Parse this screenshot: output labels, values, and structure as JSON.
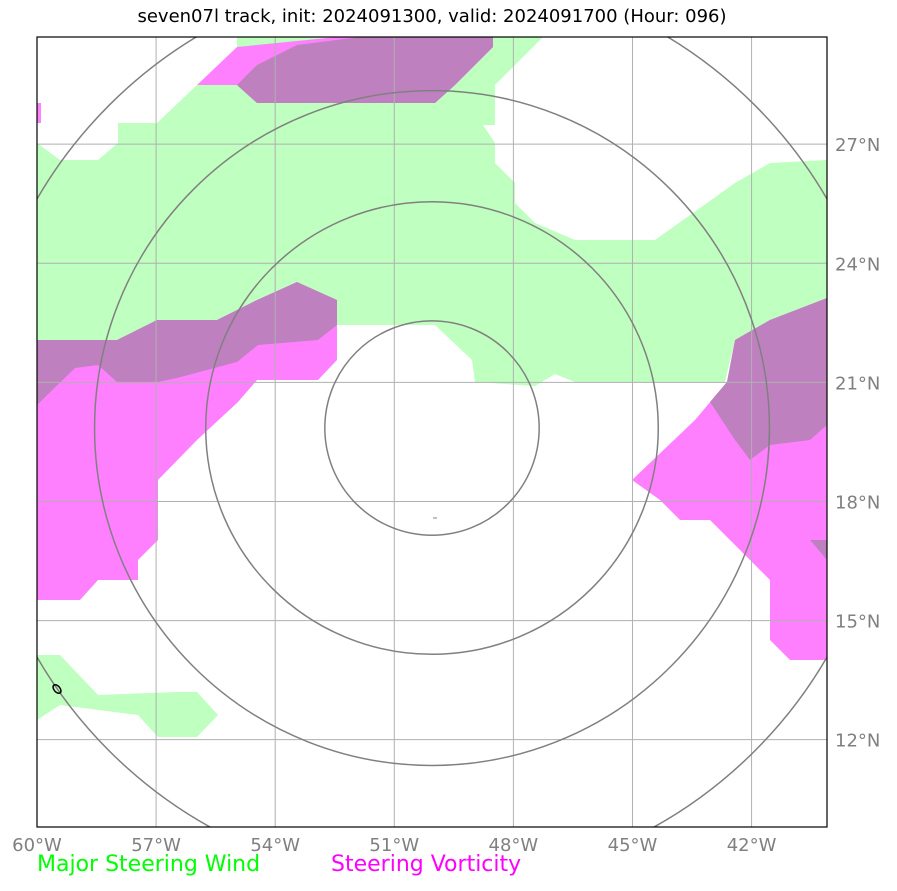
{
  "title": "seven07l track, init: 2024091300, valid: 2024091700 (Hour: 096)",
  "map": {
    "lon_range": [
      -60,
      -40.1
    ],
    "lat_range": [
      9.8,
      29.7
    ],
    "lon_ticks": [
      {
        "value": -60,
        "label": "60°W"
      },
      {
        "value": -57,
        "label": "57°W"
      },
      {
        "value": -54,
        "label": "54°W"
      },
      {
        "value": -51,
        "label": "51°W"
      },
      {
        "value": -48,
        "label": "48°W"
      },
      {
        "value": -45,
        "label": "45°W"
      },
      {
        "value": -42,
        "label": "42°W"
      }
    ],
    "lat_ticks": [
      {
        "value": 27,
        "label": "27°N"
      },
      {
        "value": 24,
        "label": "24°N"
      },
      {
        "value": 21,
        "label": "21°N"
      },
      {
        "value": 18,
        "label": "18°N"
      },
      {
        "value": 15,
        "label": "15°N"
      },
      {
        "value": 12,
        "label": "12°N"
      }
    ],
    "grid": true,
    "range_rings": {
      "center": {
        "lon": -50.05,
        "lat": 19.85
      },
      "radii_deg": [
        2.7,
        5.7,
        8.5,
        11.5
      ]
    },
    "colors": {
      "wind": "#bfffbf",
      "vorticity": "#ff80ff",
      "overlap": "#bf80bf",
      "rings": "#808080",
      "grid": "#b0b0b0"
    }
  },
  "legend": {
    "wind": {
      "label": "Major Steering Wind",
      "color": "#00ff00"
    },
    "vorticity": {
      "label": "Steering Vorticity",
      "color": "#ff00ff"
    }
  }
}
